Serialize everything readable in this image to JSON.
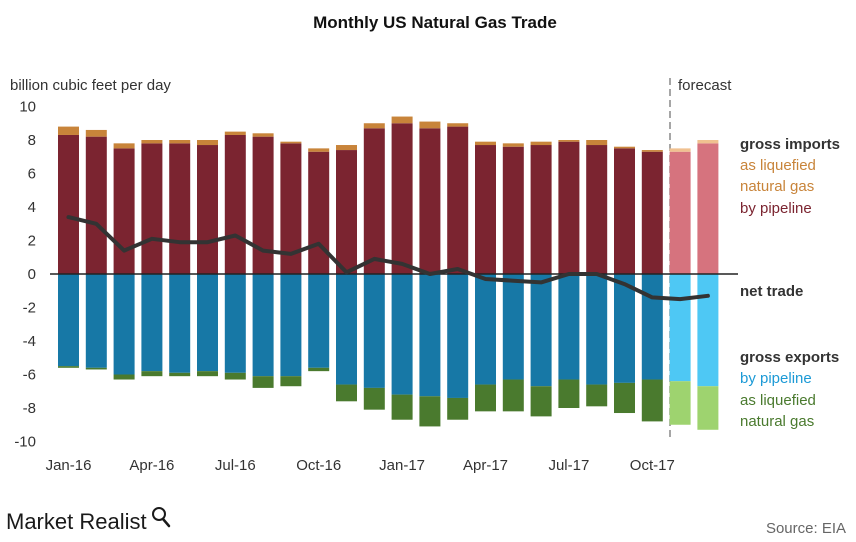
{
  "title": "Monthly US Natural Gas Trade",
  "brand": "Market Realist",
  "source": "Source: EIA",
  "forecast_label": "forecast",
  "colors": {
    "pipeline_imports": "#7b2430",
    "lng_imports": "#c8843a",
    "pipeline_exports": "#1778a6",
    "lng_exports": "#4a7a2e",
    "forecast_pipeline_imports": "#d6737e",
    "forecast_lng_imports": "#f0c190",
    "forecast_pipeline_exports": "#4ec8f4",
    "forecast_lng_exports": "#9ed36f",
    "net_trade": "#333333"
  },
  "legend": {
    "gross_imports": "gross imports",
    "imports_lng": [
      "as liquefied",
      "natural gas"
    ],
    "imports_pipeline": "by pipeline",
    "net_trade": "net trade",
    "gross_exports": "gross exports",
    "exports_pipeline": "by pipeline",
    "exports_lng": [
      "as liquefied",
      "natural gas"
    ]
  },
  "chart_data": {
    "type": "bar",
    "stacked": true,
    "ylabel": "billion cubic feet per day",
    "ylim": [
      -10,
      10
    ],
    "yticks": [
      10,
      8,
      6,
      4,
      2,
      0,
      -2,
      -4,
      -6,
      -8,
      -10
    ],
    "x_tick_labels": [
      {
        "index": 0,
        "label": "Jan-16"
      },
      {
        "index": 3,
        "label": "Apr-16"
      },
      {
        "index": 6,
        "label": "Jul-16"
      },
      {
        "index": 9,
        "label": "Oct-16"
      },
      {
        "index": 12,
        "label": "Jan-17"
      },
      {
        "index": 15,
        "label": "Apr-17"
      },
      {
        "index": 18,
        "label": "Jul-17"
      },
      {
        "index": 21,
        "label": "Oct-17"
      }
    ],
    "categories": [
      "Jan-16",
      "Feb-16",
      "Mar-16",
      "Apr-16",
      "May-16",
      "Jun-16",
      "Jul-16",
      "Aug-16",
      "Sep-16",
      "Oct-16",
      "Nov-16",
      "Dec-16",
      "Jan-17",
      "Feb-17",
      "Mar-17",
      "Apr-17",
      "May-17",
      "Jun-17",
      "Jul-17",
      "Aug-17",
      "Sep-17",
      "Oct-17",
      "Nov-17",
      "Dec-17"
    ],
    "forecast_start_index": 22,
    "series": [
      {
        "name": "by pipeline",
        "group": "gross imports",
        "values": [
          8.3,
          8.2,
          7.5,
          7.8,
          7.8,
          7.7,
          8.3,
          8.2,
          7.8,
          7.3,
          7.4,
          8.7,
          9.0,
          8.7,
          8.8,
          7.7,
          7.6,
          7.7,
          7.9,
          7.7,
          7.5,
          7.3,
          7.3,
          7.8
        ]
      },
      {
        "name": "as liquefied natural gas",
        "group": "gross imports",
        "values": [
          0.5,
          0.4,
          0.3,
          0.2,
          0.2,
          0.3,
          0.2,
          0.2,
          0.1,
          0.2,
          0.3,
          0.3,
          0.4,
          0.4,
          0.2,
          0.2,
          0.2,
          0.2,
          0.1,
          0.3,
          0.1,
          0.1,
          0.2,
          0.2
        ]
      },
      {
        "name": "by pipeline",
        "group": "gross exports",
        "values": [
          -5.5,
          -5.6,
          -6.0,
          -5.8,
          -5.9,
          -5.8,
          -5.9,
          -6.1,
          -6.1,
          -5.6,
          -6.6,
          -6.8,
          -7.2,
          -7.3,
          -7.4,
          -6.6,
          -6.3,
          -6.7,
          -6.3,
          -6.6,
          -6.5,
          -6.3,
          -6.4,
          -6.7
        ]
      },
      {
        "name": "as liquefied natural gas",
        "group": "gross exports",
        "values": [
          -0.1,
          -0.1,
          -0.3,
          -0.3,
          -0.2,
          -0.3,
          -0.4,
          -0.7,
          -0.6,
          -0.2,
          -1.0,
          -1.3,
          -1.5,
          -1.8,
          -1.3,
          -1.6,
          -1.9,
          -1.8,
          -1.7,
          -1.3,
          -1.8,
          -2.5,
          -2.6,
          -2.6
        ]
      },
      {
        "name": "net trade",
        "type": "line",
        "values": [
          3.4,
          3.0,
          1.4,
          2.1,
          1.9,
          1.9,
          2.3,
          1.4,
          1.2,
          1.8,
          0.1,
          0.9,
          0.6,
          0.0,
          0.3,
          -0.3,
          -0.4,
          -0.5,
          0.0,
          0.0,
          -0.6,
          -1.4,
          -1.5,
          -1.3
        ]
      }
    ]
  }
}
